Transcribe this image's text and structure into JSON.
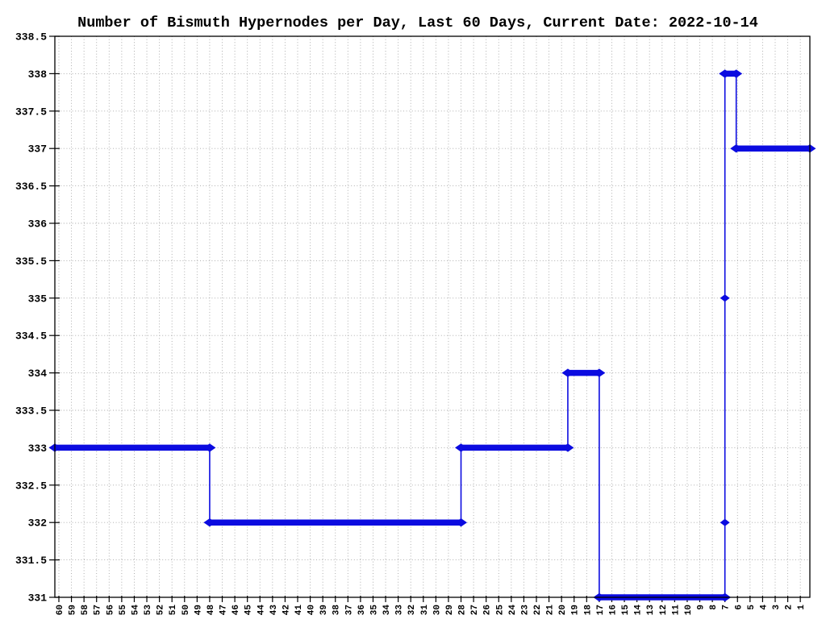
{
  "chart_data": {
    "type": "line",
    "title": "Number of Bismuth Hypernodes per Day, Last 60 Days, Current Date: 2022-10-14",
    "xlabel": "",
    "ylabel": "",
    "grid": true,
    "legend": "none",
    "x_domain": [
      60.32,
      0.24
    ],
    "y_domain": [
      331,
      338.5
    ],
    "x_tick_labels": [
      "60",
      "59",
      "58",
      "57",
      "56",
      "55",
      "54",
      "53",
      "52",
      "51",
      "50",
      "49",
      "48",
      "47",
      "46",
      "45",
      "44",
      "43",
      "42",
      "41",
      "40",
      "39",
      "38",
      "37",
      "36",
      "35",
      "34",
      "33",
      "32",
      "31",
      "30",
      "29",
      "28",
      "27",
      "26",
      "25",
      "24",
      "23",
      "22",
      "21",
      "20",
      "19",
      "18",
      "17",
      "16",
      "15",
      "14",
      "13",
      "12",
      "11",
      "10",
      "9",
      "8",
      "7",
      "6",
      "5",
      "4",
      "3",
      "2",
      "1"
    ],
    "y_tick_labels": [
      "331",
      "331.5",
      "332",
      "332.5",
      "333",
      "333.5",
      "334",
      "334.5",
      "335",
      "335.5",
      "336",
      "336.5",
      "337",
      "337.5",
      "338",
      "338.5"
    ],
    "colors": {
      "series": "#0b0be0",
      "grid": "#a6a6a6",
      "axis": "#000000",
      "background": "#ffffff"
    },
    "series": [
      {
        "name": "bismuth-hypernodes",
        "color": "#0b0be0",
        "step_segments": [
          {
            "from_day": 60.32,
            "to_day": 48,
            "value": 333
          },
          {
            "from_day": 48,
            "to_day": 28,
            "value": 332
          },
          {
            "from_day": 28,
            "to_day": 19.5,
            "value": 333
          },
          {
            "from_day": 19.5,
            "to_day": 17,
            "value": 334
          },
          {
            "from_day": 17,
            "to_day": 7,
            "value": 331
          },
          {
            "from_day": 7,
            "to_day": 6.1,
            "value": 338
          },
          {
            "from_day": 6.1,
            "to_day": 0.24,
            "value": 337
          }
        ],
        "extra_points": [
          {
            "day": 7,
            "value": 335
          },
          {
            "day": 7,
            "value": 332
          }
        ]
      }
    ]
  }
}
